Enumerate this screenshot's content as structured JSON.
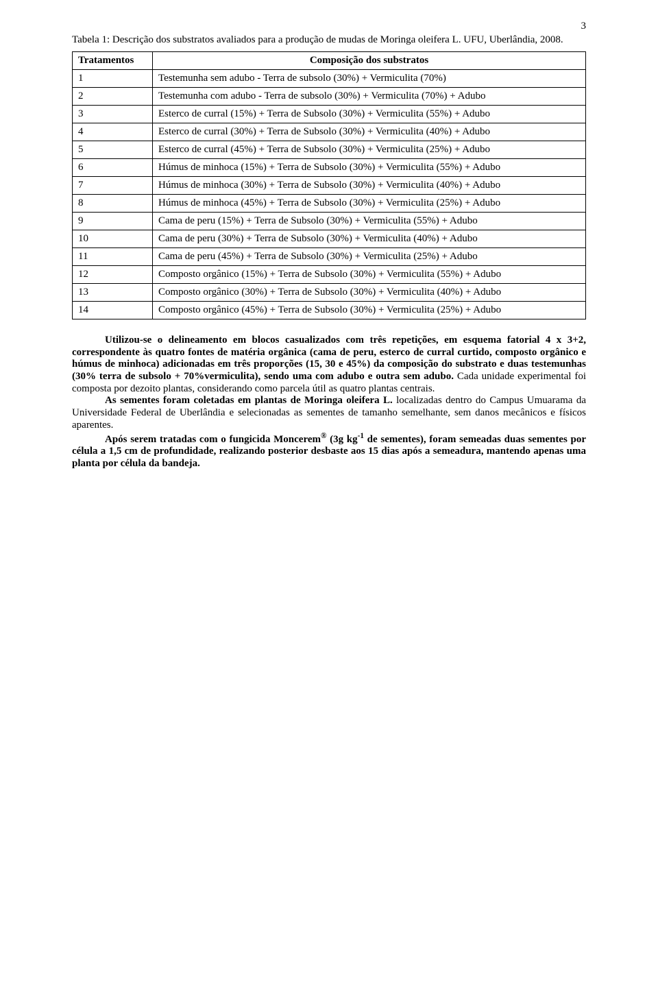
{
  "page_number": "3",
  "table_caption": "Tabela 1: Descrição dos substratos avaliados para a produção de mudas de Moringa oleifera L. UFU, Uberlândia, 2008.",
  "table": {
    "header": {
      "col1": "Tratamentos",
      "col2": "Composição dos substratos"
    },
    "rows": [
      {
        "n": "1",
        "desc": "Testemunha sem adubo - Terra de subsolo (30%) + Vermiculita (70%)"
      },
      {
        "n": "2",
        "desc": "Testemunha com adubo - Terra de subsolo (30%) + Vermiculita (70%) + Adubo"
      },
      {
        "n": "3",
        "desc": "Esterco de curral (15%) + Terra de Subsolo (30%) + Vermiculita (55%) + Adubo"
      },
      {
        "n": "4",
        "desc": "Esterco de curral (30%) + Terra de Subsolo (30%) + Vermiculita (40%) + Adubo"
      },
      {
        "n": "5",
        "desc": "Esterco de curral (45%) + Terra de Subsolo (30%) + Vermiculita (25%) + Adubo"
      },
      {
        "n": "6",
        "desc": "Húmus de minhoca (15%) + Terra de Subsolo (30%) + Vermiculita (55%) + Adubo"
      },
      {
        "n": "7",
        "desc": "Húmus de minhoca (30%) + Terra de Subsolo (30%) + Vermiculita (40%) + Adubo"
      },
      {
        "n": "8",
        "desc": "Húmus de minhoca (45%) + Terra de Subsolo (30%) + Vermiculita (25%) + Adubo"
      },
      {
        "n": "9",
        "desc": "Cama de peru (15%) + Terra de Subsolo (30%) + Vermiculita (55%) + Adubo"
      },
      {
        "n": "10",
        "desc": "Cama de peru (30%) + Terra de Subsolo (30%) + Vermiculita (40%) + Adubo"
      },
      {
        "n": "11",
        "desc": "Cama de peru (45%) + Terra de Subsolo (30%) + Vermiculita (25%) + Adubo"
      },
      {
        "n": "12",
        "desc": "Composto orgânico (15%) + Terra de Subsolo (30%) + Vermiculita (55%) + Adubo"
      },
      {
        "n": "13",
        "desc": "Composto orgânico (30%) + Terra de Subsolo (30%) + Vermiculita (40%) + Adubo"
      },
      {
        "n": "14",
        "desc": "Composto orgânico (45%) + Terra de Subsolo (30%) + Vermiculita (25%) + Adubo"
      }
    ]
  },
  "paragraphs": {
    "p1_a": "Utilizou-se o delineamento em blocos casualizados com três repetições, em esquema fatorial 4 x 3+2, correspondente às quatro fontes de matéria orgânica  (cama de peru, esterco de curral curtido, composto orgânico e húmus de minhoca) adicionadas em três proporções (15, 30 e 45%) da composição do substrato e duas testemunhas (30% terra de subsolo + 70%vermiculita), sendo uma com adubo e outra sem adubo. ",
    "p1_b": "Cada unidade experimental foi composta por dezoito plantas, considerando como parcela útil as quatro plantas centrais.",
    "p2_a": "As sementes foram coletadas em plantas de Moringa oleifera L. ",
    "p2_b": "localizadas dentro do Campus Umuarama da Universidade Federal de Uberlândia e selecionadas as sementes de tamanho semelhante, sem danos mecânicos e físicos aparentes.",
    "p3_a": "Após serem tratadas com o fungicida Moncerem",
    "p3_sup": "®",
    "p3_b": " (3g kg",
    "p3_sup2": "-1",
    "p3_c": " de sementes), foram semeadas duas sementes por célula a 1,5 cm de profundidade, realizando posterior desbaste aos 15 dias após a semeadura, mantendo apenas uma planta por célula da bandeja."
  }
}
